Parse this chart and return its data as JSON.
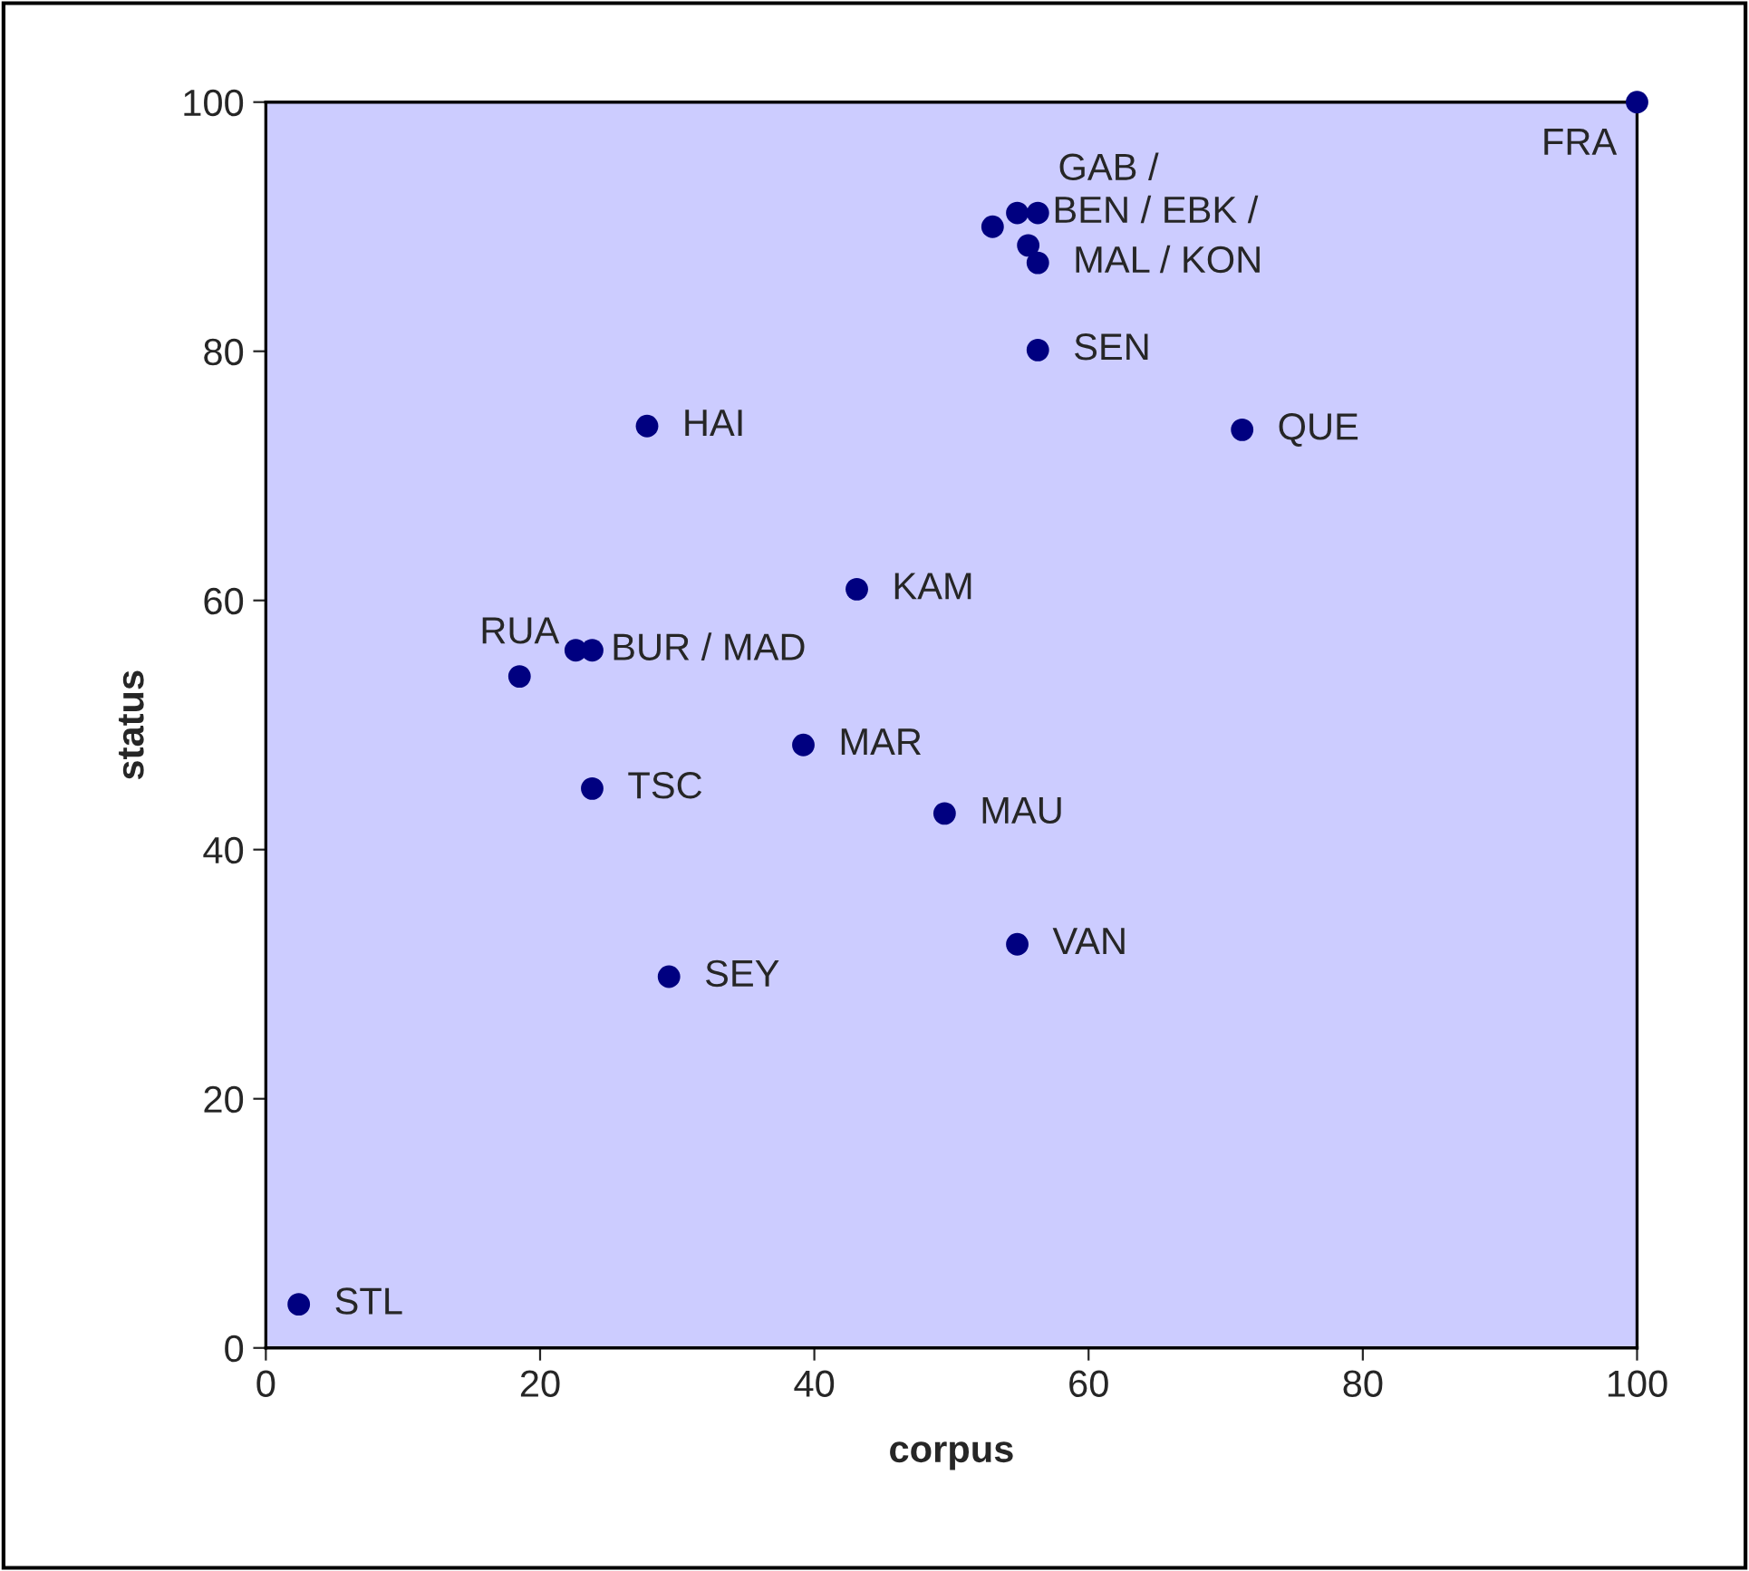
{
  "chart_data": {
    "type": "scatter",
    "xlabel": "corpus",
    "ylabel": "status",
    "x": [
      53.0,
      54.8,
      56.3,
      55.6,
      56.3,
      56.3,
      100,
      27.8,
      71.2,
      43.1,
      22.6,
      23.8,
      18.5,
      39.2,
      23.8,
      49.5,
      54.8,
      29.4,
      2.4
    ],
    "series": [
      {
        "color": "#000080",
        "values": [
          90.0,
          91.1,
          91.1,
          88.5,
          87.1,
          80.1,
          100,
          74.0,
          73.7,
          60.9,
          56.0,
          56.0,
          53.9,
          48.4,
          44.9,
          42.9,
          32.4,
          29.8,
          3.5
        ]
      }
    ],
    "annotations": [
      {
        "text": "BEN / EBK /",
        "x": 54.8,
        "y": 91.1
      },
      {
        "text": "GAB /",
        "x": 56.3,
        "y": 91.1
      },
      {
        "text": "MAL / KON",
        "x": 56.3,
        "y": 87.1
      },
      {
        "text": "SEN",
        "x": 56.3,
        "y": 80.1
      },
      {
        "text": "FRA",
        "x": 100,
        "y": 100
      },
      {
        "text": "HAI",
        "x": 27.8,
        "y": 74.0
      },
      {
        "text": "QUE",
        "x": 71.2,
        "y": 73.7
      },
      {
        "text": "KAM",
        "x": 43.1,
        "y": 60.9
      },
      {
        "text": "BUR / MAD",
        "x": 22.6,
        "y": 56.0
      },
      {
        "text": "RUA",
        "x": 18.5,
        "y": 53.9
      },
      {
        "text": "MAR",
        "x": 39.2,
        "y": 48.4
      },
      {
        "text": "TSC",
        "x": 23.8,
        "y": 44.9
      },
      {
        "text": "MAU",
        "x": 49.5,
        "y": 42.9
      },
      {
        "text": "VAN",
        "x": 54.8,
        "y": 32.4
      },
      {
        "text": "SEY",
        "x": 29.4,
        "y": 29.8
      },
      {
        "text": "STL",
        "x": 2.4,
        "y": 3.5
      }
    ],
    "xlim": [
      0,
      100
    ],
    "ylim": [
      0,
      100
    ],
    "xticks": [
      0,
      20,
      40,
      60,
      80,
      100
    ],
    "yticks": [
      0,
      20,
      40,
      60,
      80,
      100
    ],
    "grid": false,
    "legend": false,
    "marker": "circle"
  }
}
